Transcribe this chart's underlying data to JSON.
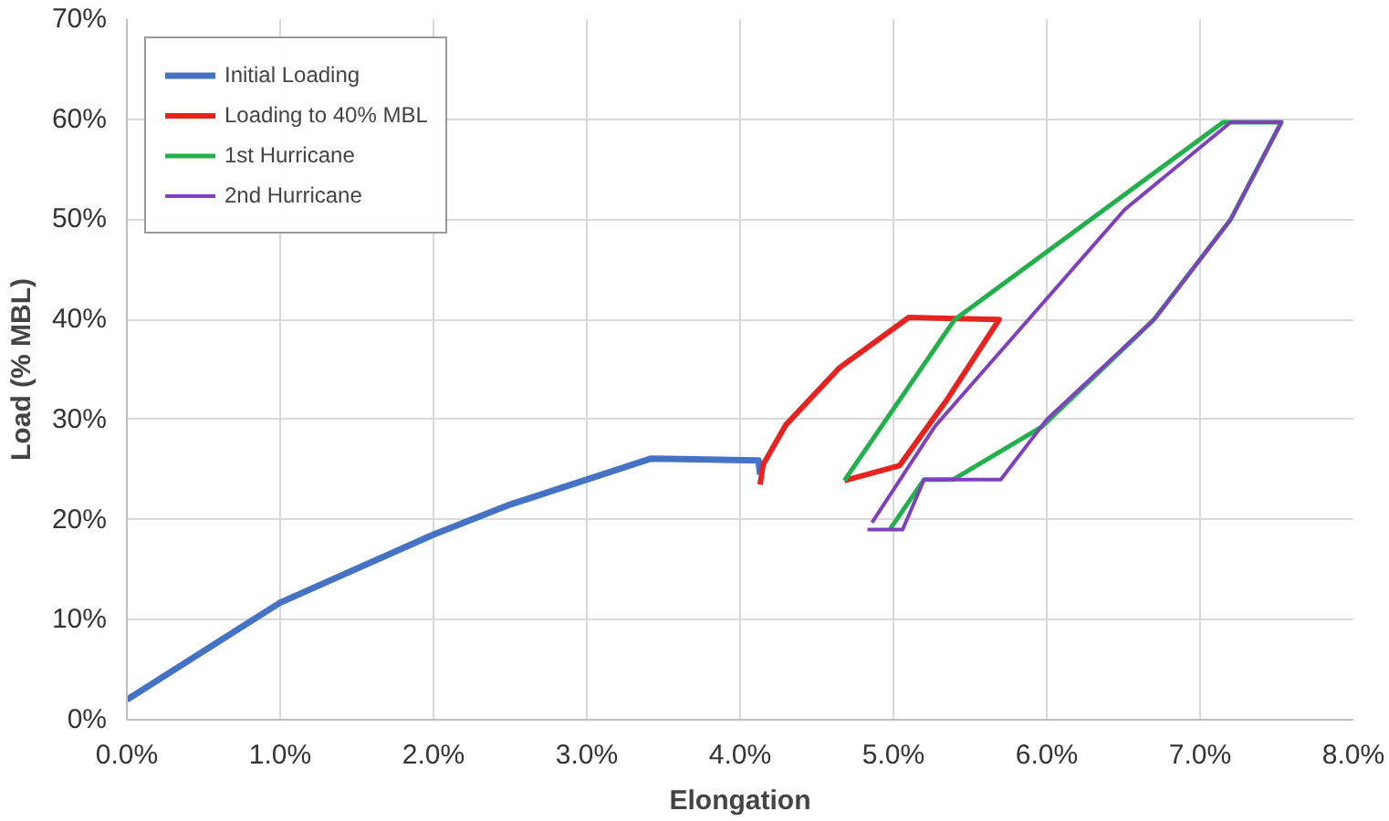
{
  "chart_data": {
    "type": "line",
    "xlabel": "Elongation",
    "ylabel": "Load (% MBL)",
    "xlim": [
      0,
      8
    ],
    "ylim": [
      0,
      70
    ],
    "xticks": [
      {
        "value": 0,
        "label": "0.0%"
      },
      {
        "value": 1,
        "label": "1.0%"
      },
      {
        "value": 2,
        "label": "2.0%"
      },
      {
        "value": 3,
        "label": "3.0%"
      },
      {
        "value": 4,
        "label": "4.0%"
      },
      {
        "value": 5,
        "label": "5.0%"
      },
      {
        "value": 6,
        "label": "6.0%"
      },
      {
        "value": 7,
        "label": "7.0%"
      },
      {
        "value": 8,
        "label": "8.0%"
      }
    ],
    "yticks": [
      {
        "value": 0,
        "label": "0%"
      },
      {
        "value": 10,
        "label": "10%"
      },
      {
        "value": 20,
        "label": "20%"
      },
      {
        "value": 30,
        "label": "30%"
      },
      {
        "value": 40,
        "label": "40%"
      },
      {
        "value": 50,
        "label": "50%"
      },
      {
        "value": 60,
        "label": "60%"
      },
      {
        "value": 70,
        "label": "70%"
      }
    ],
    "grid": true,
    "legend": "top left",
    "marker": "none",
    "line_style": "solid",
    "series": [
      {
        "name": "Initial Loading",
        "color": "#4472c4",
        "x": [
          0,
          1.0,
          2.0,
          2.5,
          3.42,
          4.12,
          4.13
        ],
        "values": [
          2,
          11.7,
          18.5,
          21.5,
          26.1,
          25.9,
          24.5
        ]
      },
      {
        "name": "Loading to 40% MBL",
        "color": "#e8231f",
        "x": [
          4.13,
          4.15,
          4.3,
          4.65,
          5.1,
          5.69,
          5.35,
          5.04,
          4.68
        ],
        "values": [
          23.5,
          25.5,
          29.5,
          35.2,
          40.2,
          40,
          32,
          25.4,
          23.9
        ]
      },
      {
        "name": "1st Hurricane",
        "color": "#22b04b",
        "x": [
          4.68,
          5.4,
          7.15,
          7.53,
          7.2,
          6.7,
          5.97,
          5.39,
          5.2,
          4.98
        ],
        "values": [
          23.9,
          40,
          59.7,
          59.7,
          50,
          40,
          29.3,
          24,
          24,
          19.1
        ]
      },
      {
        "name": "2nd Hurricane",
        "color": "#7f3fbf",
        "x": [
          4.83,
          5.06,
          5.2,
          5.7,
          6.0,
          6.7,
          7.2,
          7.53,
          7.2,
          6.51,
          5.27,
          4.86
        ],
        "values": [
          19,
          19,
          24,
          24,
          30,
          40,
          50,
          59.7,
          59.7,
          51,
          29.3,
          19.7
        ]
      }
    ]
  }
}
